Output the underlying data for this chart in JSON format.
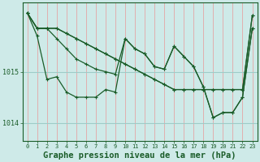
{
  "bg_color": "#ceeae8",
  "grid_color_h": "#9eccc8",
  "grid_color_v": "#e89898",
  "line_color": "#1a5c28",
  "title": "Graphe pression niveau de la mer (hPa)",
  "title_fontsize": 7.5,
  "xlim": [
    -0.5,
    23.5
  ],
  "ylim": [
    1013.65,
    1016.35
  ],
  "yticks": [
    1014,
    1015
  ],
  "xticks": [
    0,
    1,
    2,
    3,
    4,
    5,
    6,
    7,
    8,
    9,
    10,
    11,
    12,
    13,
    14,
    15,
    16,
    17,
    18,
    19,
    20,
    21,
    22,
    23
  ],
  "series": [
    [
      1016.15,
      1015.85,
      1015.85,
      1015.85,
      1015.75,
      1015.65,
      1015.55,
      1015.45,
      1015.35,
      1015.25,
      1015.15,
      1015.05,
      1014.95,
      1014.85,
      1014.75,
      1014.65,
      1014.65,
      1014.65,
      1014.65,
      1014.65,
      1014.65,
      1014.65,
      1014.65,
      1016.1
    ],
    [
      1016.15,
      1015.85,
      1015.85,
      1015.85,
      1015.75,
      1015.65,
      1015.55,
      1015.45,
      1015.35,
      1015.25,
      1015.15,
      1015.05,
      1014.95,
      1014.85,
      1014.75,
      1014.65,
      1014.65,
      1014.65,
      1014.65,
      1014.65,
      1014.65,
      1014.65,
      1014.65,
      1016.1
    ],
    [
      1016.15,
      1015.85,
      1015.85,
      1015.65,
      1015.45,
      1015.25,
      1015.15,
      1015.05,
      1015.0,
      1014.95,
      1015.65,
      1015.45,
      1015.35,
      1015.1,
      1015.05,
      1015.5,
      1015.3,
      1015.1,
      1014.7,
      1014.1,
      1014.2,
      1014.2,
      1014.5,
      1015.85
    ],
    [
      1016.15,
      1015.7,
      1014.85,
      1014.9,
      1014.6,
      1014.5,
      1014.5,
      1014.5,
      1014.65,
      1014.6,
      1015.65,
      1015.45,
      1015.35,
      1015.1,
      1015.05,
      1015.5,
      1015.3,
      1015.1,
      1014.7,
      1014.1,
      1014.2,
      1014.2,
      1014.5,
      1015.85
    ]
  ]
}
